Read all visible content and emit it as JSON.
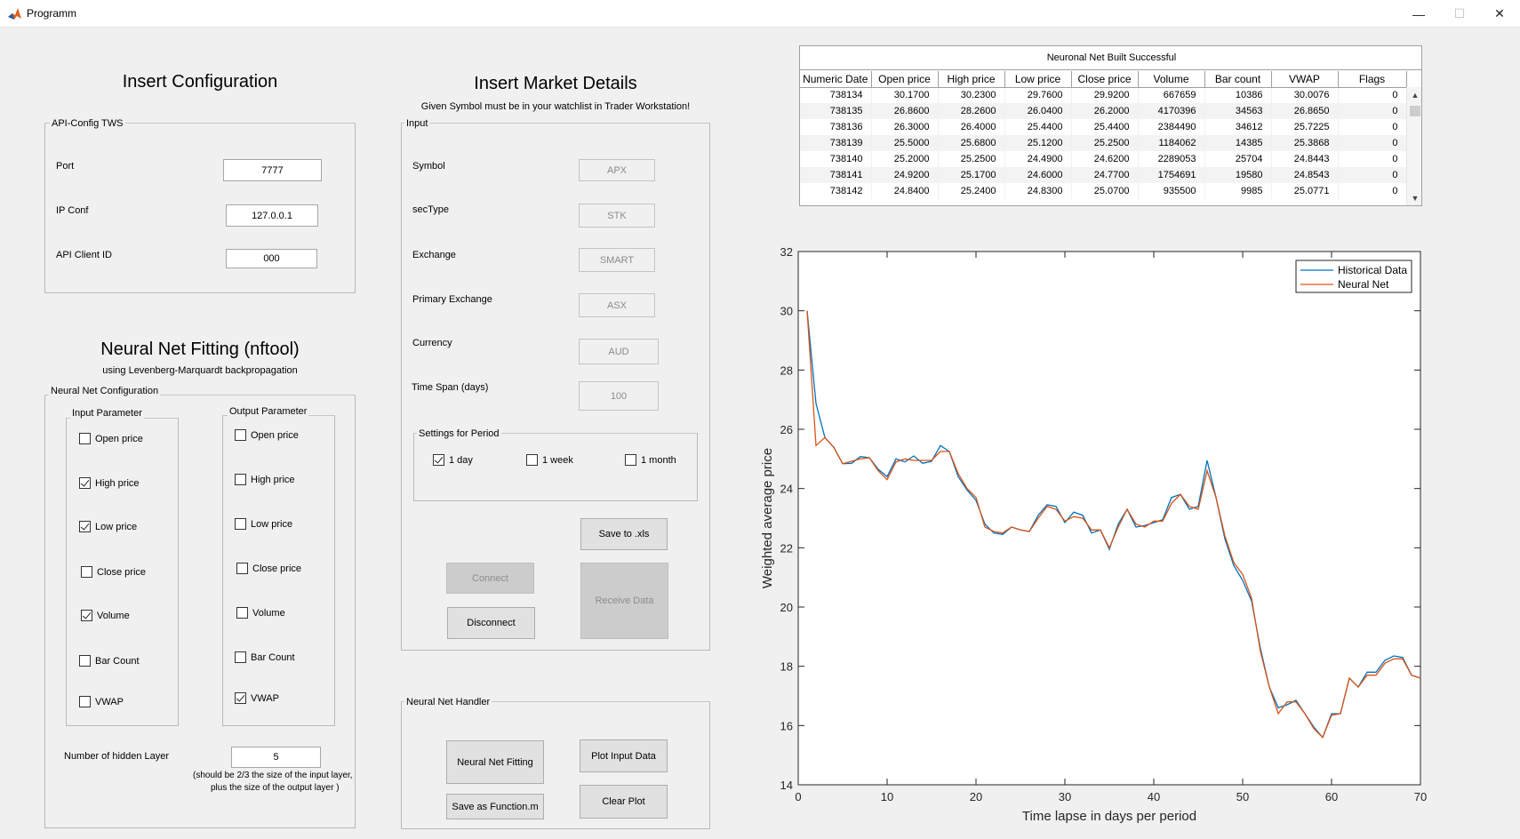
{
  "window": {
    "title": "Programm",
    "minimize_glyph": "—",
    "maximize_glyph": "☐",
    "close_glyph": "✕",
    "icon": "matlab-icon"
  },
  "config": {
    "heading": "Insert Configuration",
    "panel_title": "API-Config TWS",
    "port_label": "Port",
    "port_value": "7777",
    "ip_label": "IP Conf",
    "ip_value": "127.0.0.1",
    "client_label": "API Client ID",
    "client_value": "000"
  },
  "nn": {
    "heading": "Neural Net Fitting (nftool)",
    "subheading": "using Levenberg-Marquardt backpropagation",
    "panel_title": "Neural Net Configuration",
    "input_title": "Input Parameter",
    "output_title": "Output Parameter",
    "inputs": [
      {
        "label": "Open price",
        "checked": false
      },
      {
        "label": "High price",
        "checked": true
      },
      {
        "label": "Low price",
        "checked": true
      },
      {
        "label": "Close price",
        "checked": false
      },
      {
        "label": "Volume",
        "checked": true
      },
      {
        "label": "Bar Count",
        "checked": false
      },
      {
        "label": "VWAP",
        "checked": false
      }
    ],
    "outputs": [
      {
        "label": "Open price",
        "checked": false
      },
      {
        "label": "High price",
        "checked": false
      },
      {
        "label": "Low price",
        "checked": false
      },
      {
        "label": "Close price",
        "checked": false
      },
      {
        "label": "Volume",
        "checked": false
      },
      {
        "label": "Bar Count",
        "checked": false
      },
      {
        "label": "VWAP",
        "checked": true
      }
    ],
    "hidden_label": "Number of hidden Layer",
    "hidden_value": "5",
    "hint_line1": "(should be 2/3 the size of the input layer,",
    "hint_line2": "plus the size of the output layer )"
  },
  "market": {
    "heading": "Insert Market Details",
    "subheading": "Given Symbol must be in your watchlist in Trader Workstation!",
    "panel_title": "Input",
    "symbol_label": "Symbol",
    "symbol_value": "APX",
    "sectype_label": "secType",
    "sectype_value": "STK",
    "exchange_label": "Exchange",
    "exchange_value": "SMART",
    "primary_label": "Primary Exchange",
    "primary_value": "ASX",
    "currency_label": "Currency",
    "currency_value": "AUD",
    "timespan_label": "Time Span (days)",
    "timespan_value": "100",
    "period_title": "Settings for Period",
    "period_1day": "1 day",
    "period_1day_checked": true,
    "period_1week": "1 week",
    "period_1week_checked": false,
    "period_1month": "1 month",
    "period_1month_checked": false,
    "save_xls": "Save to .xls",
    "connect": "Connect",
    "disconnect": "Disconnect",
    "receive": "Receive Data"
  },
  "handler": {
    "panel_title": "Neural Net Handler",
    "fitting": "Neural Net Fitting",
    "plot_input": "Plot Input Data",
    "save_function": "Save as Function.m",
    "clear_plot": "Clear Plot"
  },
  "table": {
    "caption": "Neuronal Net Built Successful",
    "columns": [
      "Numeric Date",
      "Open price",
      "High price",
      "Low price",
      "Close price",
      "Volume",
      "Bar count",
      "VWAP",
      "Flags"
    ],
    "rows": [
      [
        "738134",
        "30.1700",
        "30.2300",
        "29.7600",
        "29.9200",
        "667659",
        "10386",
        "30.0076",
        "0"
      ],
      [
        "738135",
        "26.8600",
        "28.2600",
        "26.0400",
        "26.2000",
        "4170396",
        "34563",
        "26.8650",
        "0"
      ],
      [
        "738136",
        "26.3000",
        "26.4000",
        "25.4400",
        "25.4400",
        "2384490",
        "34612",
        "25.7225",
        "0"
      ],
      [
        "738139",
        "25.5000",
        "25.6800",
        "25.1200",
        "25.2500",
        "1184062",
        "14385",
        "25.3868",
        "0"
      ],
      [
        "738140",
        "25.2000",
        "25.2500",
        "24.4900",
        "24.6200",
        "2289053",
        "25704",
        "24.8443",
        "0"
      ],
      [
        "738141",
        "24.9200",
        "25.1700",
        "24.6000",
        "24.7700",
        "1754691",
        "19580",
        "24.8543",
        "0"
      ],
      [
        "738142",
        "24.8400",
        "25.2400",
        "24.8300",
        "25.0700",
        "935500",
        "9985",
        "25.0771",
        "0"
      ]
    ]
  },
  "chart_data": {
    "type": "line",
    "title": "",
    "xlabel": "Time lapse in days per period",
    "ylabel": "Weighted average price",
    "xlim": [
      0,
      70
    ],
    "ylim": [
      14,
      32
    ],
    "xticks": [
      0,
      10,
      20,
      30,
      40,
      50,
      60,
      70
    ],
    "yticks": [
      14,
      16,
      18,
      20,
      22,
      24,
      26,
      28,
      30,
      32
    ],
    "legend_position": "top-right",
    "grid": false,
    "x": [
      1,
      2,
      3,
      4,
      5,
      6,
      7,
      8,
      9,
      10,
      11,
      12,
      13,
      14,
      15,
      16,
      17,
      18,
      19,
      20,
      21,
      22,
      23,
      24,
      25,
      26,
      27,
      28,
      29,
      30,
      31,
      32,
      33,
      34,
      35,
      36,
      37,
      38,
      39,
      40,
      41,
      42,
      43,
      44,
      45,
      46,
      47,
      48,
      49,
      50,
      51,
      52,
      53,
      54,
      55,
      56,
      57,
      58,
      59,
      60,
      61,
      62,
      63,
      64,
      65,
      66,
      67,
      68,
      69,
      70
    ],
    "series": [
      {
        "name": "Historical Data",
        "color": "#0072BD",
        "values": [
          30.0,
          26.87,
          25.72,
          25.39,
          24.84,
          24.85,
          25.08,
          25.04,
          24.65,
          24.4,
          25.0,
          24.9,
          25.1,
          24.85,
          24.92,
          25.45,
          25.25,
          24.4,
          23.95,
          23.6,
          22.8,
          22.5,
          22.45,
          22.7,
          22.6,
          22.55,
          23.1,
          23.45,
          23.4,
          22.85,
          23.2,
          23.1,
          22.5,
          22.6,
          21.95,
          22.8,
          23.3,
          22.7,
          22.75,
          22.85,
          22.95,
          23.7,
          23.8,
          23.3,
          23.4,
          24.95,
          23.7,
          22.3,
          21.4,
          20.9,
          20.2,
          18.6,
          17.3,
          16.6,
          16.7,
          16.85,
          16.4,
          15.95,
          15.6,
          16.4,
          16.4,
          17.6,
          17.3,
          17.8,
          17.8,
          18.2,
          18.35,
          18.3,
          17.7,
          17.6
        ]
      },
      {
        "name": "Neural Net",
        "color": "#D95319",
        "values": [
          30.0,
          25.45,
          25.72,
          25.39,
          24.84,
          24.92,
          25.0,
          25.04,
          24.6,
          24.3,
          24.9,
          25.0,
          24.95,
          24.95,
          24.95,
          25.25,
          25.25,
          24.5,
          24.0,
          23.7,
          22.7,
          22.55,
          22.5,
          22.7,
          22.6,
          22.55,
          23.0,
          23.4,
          23.3,
          22.9,
          23.05,
          23.0,
          22.6,
          22.6,
          22.0,
          22.7,
          23.3,
          22.8,
          22.7,
          22.9,
          22.9,
          23.5,
          23.8,
          23.4,
          23.3,
          24.6,
          23.7,
          22.4,
          21.5,
          21.1,
          20.3,
          18.5,
          17.3,
          16.4,
          16.8,
          16.8,
          16.4,
          15.9,
          15.6,
          16.35,
          16.4,
          17.6,
          17.3,
          17.7,
          17.7,
          18.1,
          18.25,
          18.25,
          17.7,
          17.6
        ]
      }
    ]
  }
}
